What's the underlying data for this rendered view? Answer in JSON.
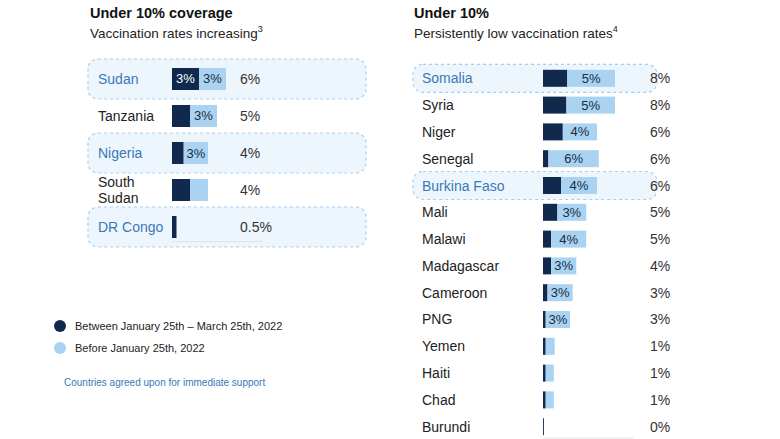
{
  "chart_data": [
    {
      "type": "bar",
      "orientation": "horizontal",
      "stacked": true,
      "data_labels": true,
      "tick_labels": false,
      "legend": "bottom-left",
      "title": "Under 10% coverage",
      "subtitle": "Vaccination rates increasing",
      "footnote_ref": "3",
      "annotation": "Countries agreed upon for immediate support",
      "categories": [
        "Sudan",
        "Tanzania",
        "Nigeria",
        "South Sudan",
        "DR Congo"
      ],
      "highlight": [
        true,
        false,
        true,
        false,
        true
      ],
      "series": [
        {
          "name": "Between January 25th – March 25th, 2022",
          "color": "#10294d",
          "values": [
            3,
            2,
            1.3,
            2,
            0.5
          ],
          "value_labels": [
            "3%",
            null,
            null,
            null,
            null
          ]
        },
        {
          "name": "Before January 25th, 2022",
          "color": "#a9d3f1",
          "values": [
            3,
            3,
            2.7,
            2,
            0
          ],
          "value_labels": [
            "3%",
            "3%",
            "3%",
            null,
            null
          ]
        }
      ],
      "total_labels": [
        "6%",
        "5%",
        "4%",
        "4%",
        "0.5%"
      ],
      "xlim": [
        0,
        10
      ],
      "xticks": []
    },
    {
      "type": "bar",
      "orientation": "horizontal",
      "stacked": true,
      "data_labels": true,
      "tick_labels": false,
      "title": "Under 10%",
      "subtitle": "Persistently low vaccination rates",
      "footnote_ref": "4",
      "categories": [
        "Somalia",
        "Syria",
        "Niger",
        "Senegal",
        "Burkina Faso",
        "Mali",
        "Malawi",
        "Madagascar",
        "Cameroon",
        "PNG",
        "Yemen",
        "Haiti",
        "Chad",
        "Burundi"
      ],
      "highlight": [
        true,
        false,
        false,
        false,
        true,
        false,
        false,
        false,
        false,
        false,
        false,
        false,
        false,
        false
      ],
      "series": [
        {
          "color": "#10294d",
          "values": [
            2.7,
            2.6,
            2.2,
            0.6,
            2,
            1.6,
            0.9,
            0.9,
            0.5,
            0.3,
            0.3,
            0.3,
            0.3,
            0.1
          ],
          "value_labels": [
            null,
            null,
            null,
            null,
            null,
            null,
            null,
            null,
            null,
            null,
            null,
            null,
            null,
            null
          ]
        },
        {
          "color": "#a9d3f1",
          "values": [
            5.3,
            5.4,
            3.8,
            5.6,
            4,
            3.2,
            3.9,
            2.8,
            2.8,
            2.7,
            1,
            0.9,
            0.9,
            0
          ],
          "value_labels": [
            "5%",
            "5%",
            "4%",
            "6%",
            "4%",
            "3%",
            "4%",
            "3%",
            "3%",
            "3%",
            null,
            null,
            null,
            null
          ]
        }
      ],
      "total_labels": [
        "8%",
        "8%",
        "6%",
        "6%",
        "6%",
        "5%",
        "5%",
        "4%",
        "3%",
        "3%",
        "1%",
        "1%",
        "1%",
        "0%"
      ],
      "xlim": [
        0,
        10
      ],
      "xticks": []
    }
  ]
}
